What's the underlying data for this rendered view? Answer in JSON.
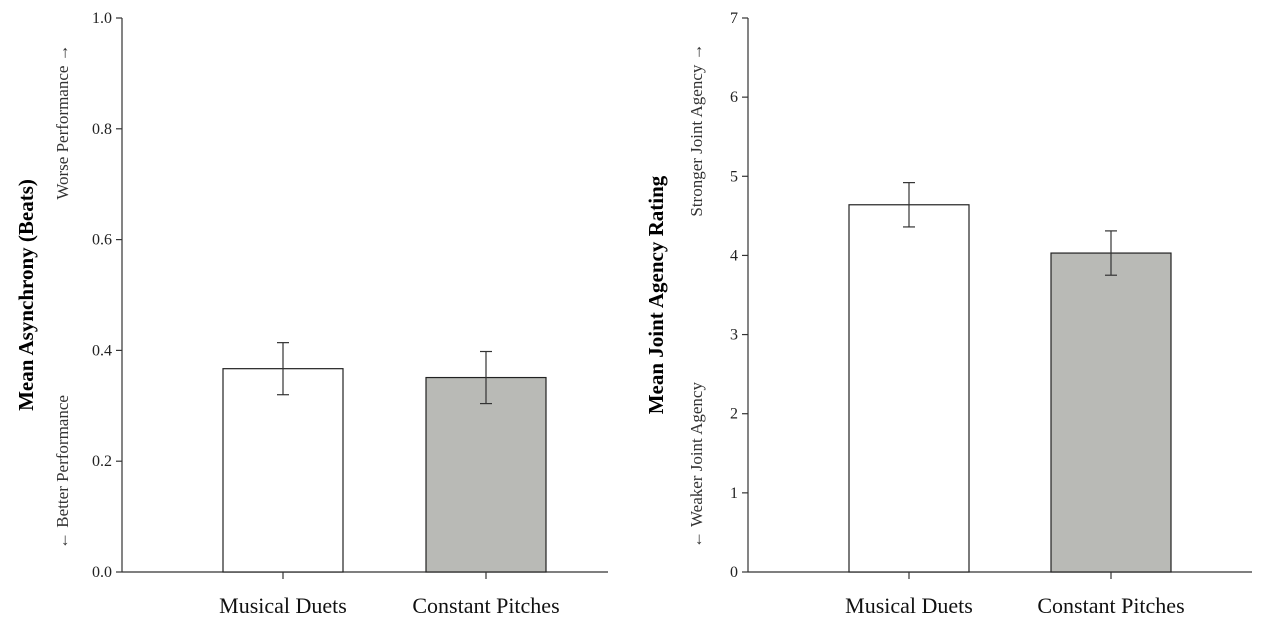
{
  "chart_data": [
    {
      "type": "bar",
      "categories": [
        "Musical Duets",
        "Constant Pitches"
      ],
      "values": [
        0.367,
        0.351
      ],
      "errors": [
        0.047,
        0.047
      ],
      "bar_colors": [
        "#ffffff",
        "#b9bab6"
      ],
      "ylabel": "Mean Asynchrony (Beats)",
      "ylabel_high": "Worse Performance →",
      "ylabel_low": "← Better Performance",
      "ylim": [
        0,
        1.0
      ],
      "yticks": [
        0.0,
        0.2,
        0.4,
        0.6,
        0.8,
        1.0
      ],
      "ytick_labels": [
        "0.0",
        "0.2",
        "0.4",
        "0.6",
        "0.8",
        "1.0"
      ],
      "grid": false
    },
    {
      "type": "bar",
      "categories": [
        "Musical Duets",
        "Constant Pitches"
      ],
      "values": [
        4.64,
        4.03
      ],
      "errors": [
        0.28,
        0.28
      ],
      "bar_colors": [
        "#ffffff",
        "#b9bab6"
      ],
      "ylabel": "Mean Joint Agency Rating",
      "ylabel_high": "Stronger Joint Agency →",
      "ylabel_low": "← Weaker Joint Agency",
      "ylim": [
        0,
        7
      ],
      "yticks": [
        0,
        1,
        2,
        3,
        4,
        5,
        6,
        7
      ],
      "ytick_labels": [
        "0",
        "1",
        "2",
        "3",
        "4",
        "5",
        "6",
        "7"
      ],
      "grid": false
    }
  ]
}
